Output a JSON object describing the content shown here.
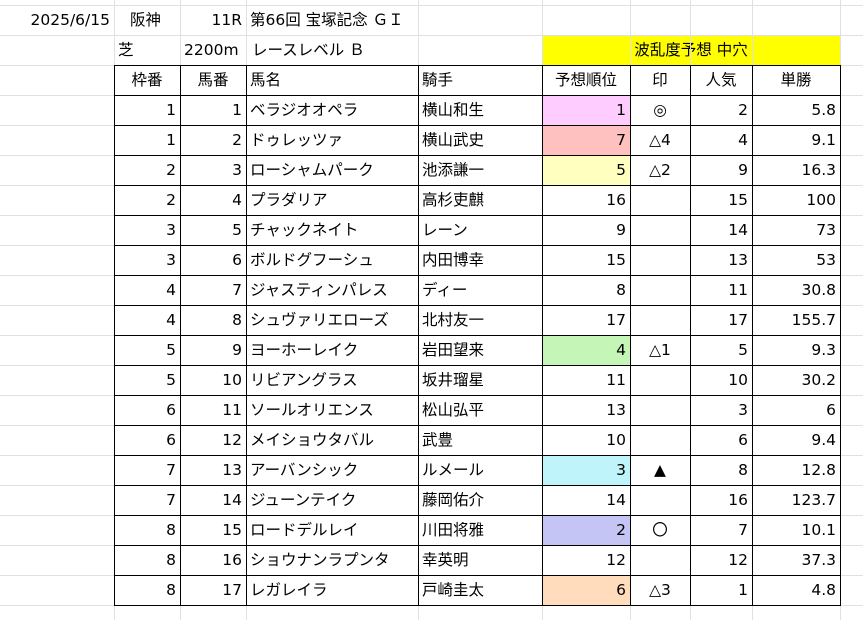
{
  "header": {
    "date": "2025/6/15",
    "venue": "阪神",
    "race_no": "11R",
    "race_name": "第66回 宝塚記念 ＧＩ",
    "surface": "芝",
    "distance": "2200m",
    "level": "レースレベル Ｂ",
    "forecast": "波乱度予想 中穴"
  },
  "columns": [
    "枠番",
    "馬番",
    "馬名",
    "騎手",
    "予想順位",
    "印",
    "人気",
    "単勝"
  ],
  "rows": [
    {
      "waku": "1",
      "umaban": "1",
      "name": "ベラジオオペラ",
      "jockey": "横山和生",
      "rank": "1",
      "mark": "◎",
      "pop": "2",
      "odds": "5.8",
      "color": "#ffccff"
    },
    {
      "waku": "1",
      "umaban": "2",
      "name": "ドゥレッツァ",
      "jockey": "横山武史",
      "rank": "7",
      "mark": "△4",
      "pop": "4",
      "odds": "9.1",
      "color": "#ffc0c0"
    },
    {
      "waku": "2",
      "umaban": "3",
      "name": "ローシャムパーク",
      "jockey": "池添謙一",
      "rank": "5",
      "mark": "△2",
      "pop": "9",
      "odds": "16.3",
      "color": "#ffffc0"
    },
    {
      "waku": "2",
      "umaban": "4",
      "name": "プラダリア",
      "jockey": "高杉吏麒",
      "rank": "16",
      "mark": "",
      "pop": "15",
      "odds": "100",
      "color": ""
    },
    {
      "waku": "3",
      "umaban": "5",
      "name": "チャックネイト",
      "jockey": "レーン",
      "rank": "9",
      "mark": "",
      "pop": "14",
      "odds": "73",
      "color": ""
    },
    {
      "waku": "3",
      "umaban": "6",
      "name": "ボルドグフーシュ",
      "jockey": "内田博幸",
      "rank": "15",
      "mark": "",
      "pop": "13",
      "odds": "53",
      "color": ""
    },
    {
      "waku": "4",
      "umaban": "7",
      "name": "ジャスティンパレス",
      "jockey": "ディー",
      "rank": "8",
      "mark": "",
      "pop": "11",
      "odds": "30.8",
      "color": ""
    },
    {
      "waku": "4",
      "umaban": "8",
      "name": "シュヴァリエローズ",
      "jockey": "北村友一",
      "rank": "17",
      "mark": "",
      "pop": "17",
      "odds": "155.7",
      "color": ""
    },
    {
      "waku": "5",
      "umaban": "9",
      "name": "ヨーホーレイク",
      "jockey": "岩田望来",
      "rank": "4",
      "mark": "△1",
      "pop": "5",
      "odds": "9.3",
      "color": "#c6f5b8"
    },
    {
      "waku": "5",
      "umaban": "10",
      "name": "リビアングラス",
      "jockey": "坂井瑠星",
      "rank": "11",
      "mark": "",
      "pop": "10",
      "odds": "30.2",
      "color": ""
    },
    {
      "waku": "6",
      "umaban": "11",
      "name": "ソールオリエンス",
      "jockey": "松山弘平",
      "rank": "13",
      "mark": "",
      "pop": "3",
      "odds": "6",
      "color": ""
    },
    {
      "waku": "6",
      "umaban": "12",
      "name": "メイショウタバル",
      "jockey": "武豊",
      "rank": "10",
      "mark": "",
      "pop": "6",
      "odds": "9.4",
      "color": ""
    },
    {
      "waku": "7",
      "umaban": "13",
      "name": "アーバンシック",
      "jockey": "ルメール",
      "rank": "3",
      "mark": "▲",
      "pop": "8",
      "odds": "12.8",
      "color": "#bff5fa"
    },
    {
      "waku": "7",
      "umaban": "14",
      "name": "ジューンテイク",
      "jockey": "藤岡佑介",
      "rank": "14",
      "mark": "",
      "pop": "16",
      "odds": "123.7",
      "color": ""
    },
    {
      "waku": "8",
      "umaban": "15",
      "name": "ロードデルレイ",
      "jockey": "川田将雅",
      "rank": "2",
      "mark": "〇",
      "pop": "7",
      "odds": "10.1",
      "color": "#c4c4f5"
    },
    {
      "waku": "8",
      "umaban": "16",
      "name": "ショウナンラプンタ",
      "jockey": "幸英明",
      "rank": "12",
      "mark": "",
      "pop": "12",
      "odds": "37.3",
      "color": ""
    },
    {
      "waku": "8",
      "umaban": "17",
      "name": "レガレイラ",
      "jockey": "戸崎圭太",
      "rank": "6",
      "mark": "△3",
      "pop": "1",
      "odds": "4.8",
      "color": "#ffdcbc"
    }
  ],
  "colors": {
    "forecast_bg": "#ffff00"
  }
}
